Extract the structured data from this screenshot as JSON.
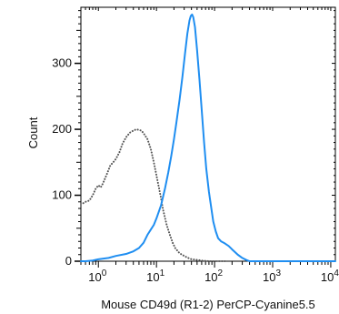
{
  "chart_data": {
    "type": "line",
    "title": "",
    "xlabel": "Mouse CD49d (R1-2) PerCP-Cyanine5.5",
    "ylabel": "Count",
    "x_scale": "log",
    "xlim": [
      0.5,
      12000
    ],
    "ylim": [
      0,
      385
    ],
    "x_ticks": [
      {
        "value": 1,
        "base": "10",
        "exp": "0"
      },
      {
        "value": 10,
        "base": "10",
        "exp": "1"
      },
      {
        "value": 100,
        "base": "10",
        "exp": "2"
      },
      {
        "value": 1000,
        "base": "10",
        "exp": "3"
      },
      {
        "value": 10000,
        "base": "10",
        "exp": "4"
      }
    ],
    "y_ticks": [
      0,
      100,
      200,
      300
    ],
    "grid": false,
    "legend": "none",
    "series": [
      {
        "style": "dotted",
        "color": "#555555",
        "points": [
          [
            0.55,
            88
          ],
          [
            0.6,
            90
          ],
          [
            0.7,
            92
          ],
          [
            0.8,
            100
          ],
          [
            0.9,
            110
          ],
          [
            1.0,
            115
          ],
          [
            1.1,
            112
          ],
          [
            1.2,
            118
          ],
          [
            1.4,
            132
          ],
          [
            1.6,
            145
          ],
          [
            1.8,
            150
          ],
          [
            2.0,
            155
          ],
          [
            2.3,
            165
          ],
          [
            2.6,
            178
          ],
          [
            3.0,
            188
          ],
          [
            3.5,
            195
          ],
          [
            4.0,
            198
          ],
          [
            4.5,
            200
          ],
          [
            5.0,
            199
          ],
          [
            5.5,
            198
          ],
          [
            6.0,
            194
          ],
          [
            7.0,
            185
          ],
          [
            8.0,
            170
          ],
          [
            9.0,
            150
          ],
          [
            10,
            130
          ],
          [
            11,
            112
          ],
          [
            12,
            95
          ],
          [
            13,
            78
          ],
          [
            15,
            55
          ],
          [
            17,
            40
          ],
          [
            19,
            28
          ],
          [
            21,
            20
          ],
          [
            25,
            12
          ],
          [
            30,
            8
          ],
          [
            35,
            5
          ],
          [
            40,
            3
          ],
          [
            50,
            2
          ],
          [
            60,
            1
          ],
          [
            80,
            0
          ],
          [
            150,
            0
          ]
        ]
      },
      {
        "style": "solid",
        "color": "#1f8ef1",
        "points": [
          [
            0.5,
            0
          ],
          [
            0.6,
            0
          ],
          [
            0.8,
            1
          ],
          [
            1.0,
            3
          ],
          [
            1.5,
            5
          ],
          [
            2.0,
            8
          ],
          [
            3.0,
            11
          ],
          [
            4.0,
            15
          ],
          [
            5.0,
            20
          ],
          [
            6.0,
            28
          ],
          [
            7.0,
            40
          ],
          [
            8.0,
            48
          ],
          [
            9.0,
            55
          ],
          [
            10,
            65
          ],
          [
            12,
            85
          ],
          [
            14,
            110
          ],
          [
            16,
            135
          ],
          [
            18,
            160
          ],
          [
            20,
            185
          ],
          [
            22,
            210
          ],
          [
            25,
            245
          ],
          [
            28,
            280
          ],
          [
            31,
            315
          ],
          [
            34,
            345
          ],
          [
            37,
            365
          ],
          [
            39,
            372
          ],
          [
            41,
            374
          ],
          [
            43,
            370
          ],
          [
            46,
            355
          ],
          [
            50,
            320
          ],
          [
            55,
            275
          ],
          [
            60,
            230
          ],
          [
            66,
            180
          ],
          [
            72,
            140
          ],
          [
            80,
            105
          ],
          [
            88,
            80
          ],
          [
            95,
            60
          ],
          [
            105,
            45
          ],
          [
            115,
            35
          ],
          [
            130,
            30
          ],
          [
            150,
            27
          ],
          [
            175,
            23
          ],
          [
            200,
            18
          ],
          [
            250,
            10
          ],
          [
            300,
            5
          ],
          [
            350,
            2
          ],
          [
            400,
            0
          ],
          [
            500,
            0
          ],
          [
            12000,
            0
          ]
        ]
      }
    ]
  }
}
